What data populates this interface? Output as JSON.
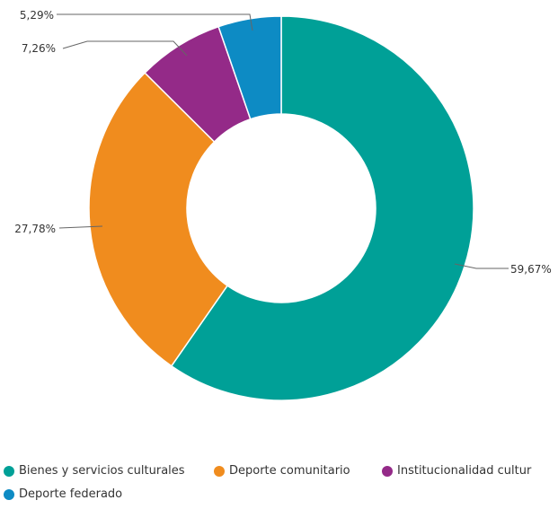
{
  "chart_data": {
    "type": "pie",
    "variant": "donut",
    "legend_position": "bottom-left",
    "categories": [
      "Bienes y servicios culturales",
      "Deporte comunitario",
      "Institucionalidad cultur",
      "Deporte federado"
    ],
    "values": [
      59.67,
      27.78,
      7.26,
      5.29
    ],
    "labels": [
      "59,67%",
      "27,78%",
      "7,26%",
      "5,29%"
    ],
    "colors": [
      "#00A097",
      "#F08C1E",
      "#942A88",
      "#0D8BC4"
    ]
  }
}
